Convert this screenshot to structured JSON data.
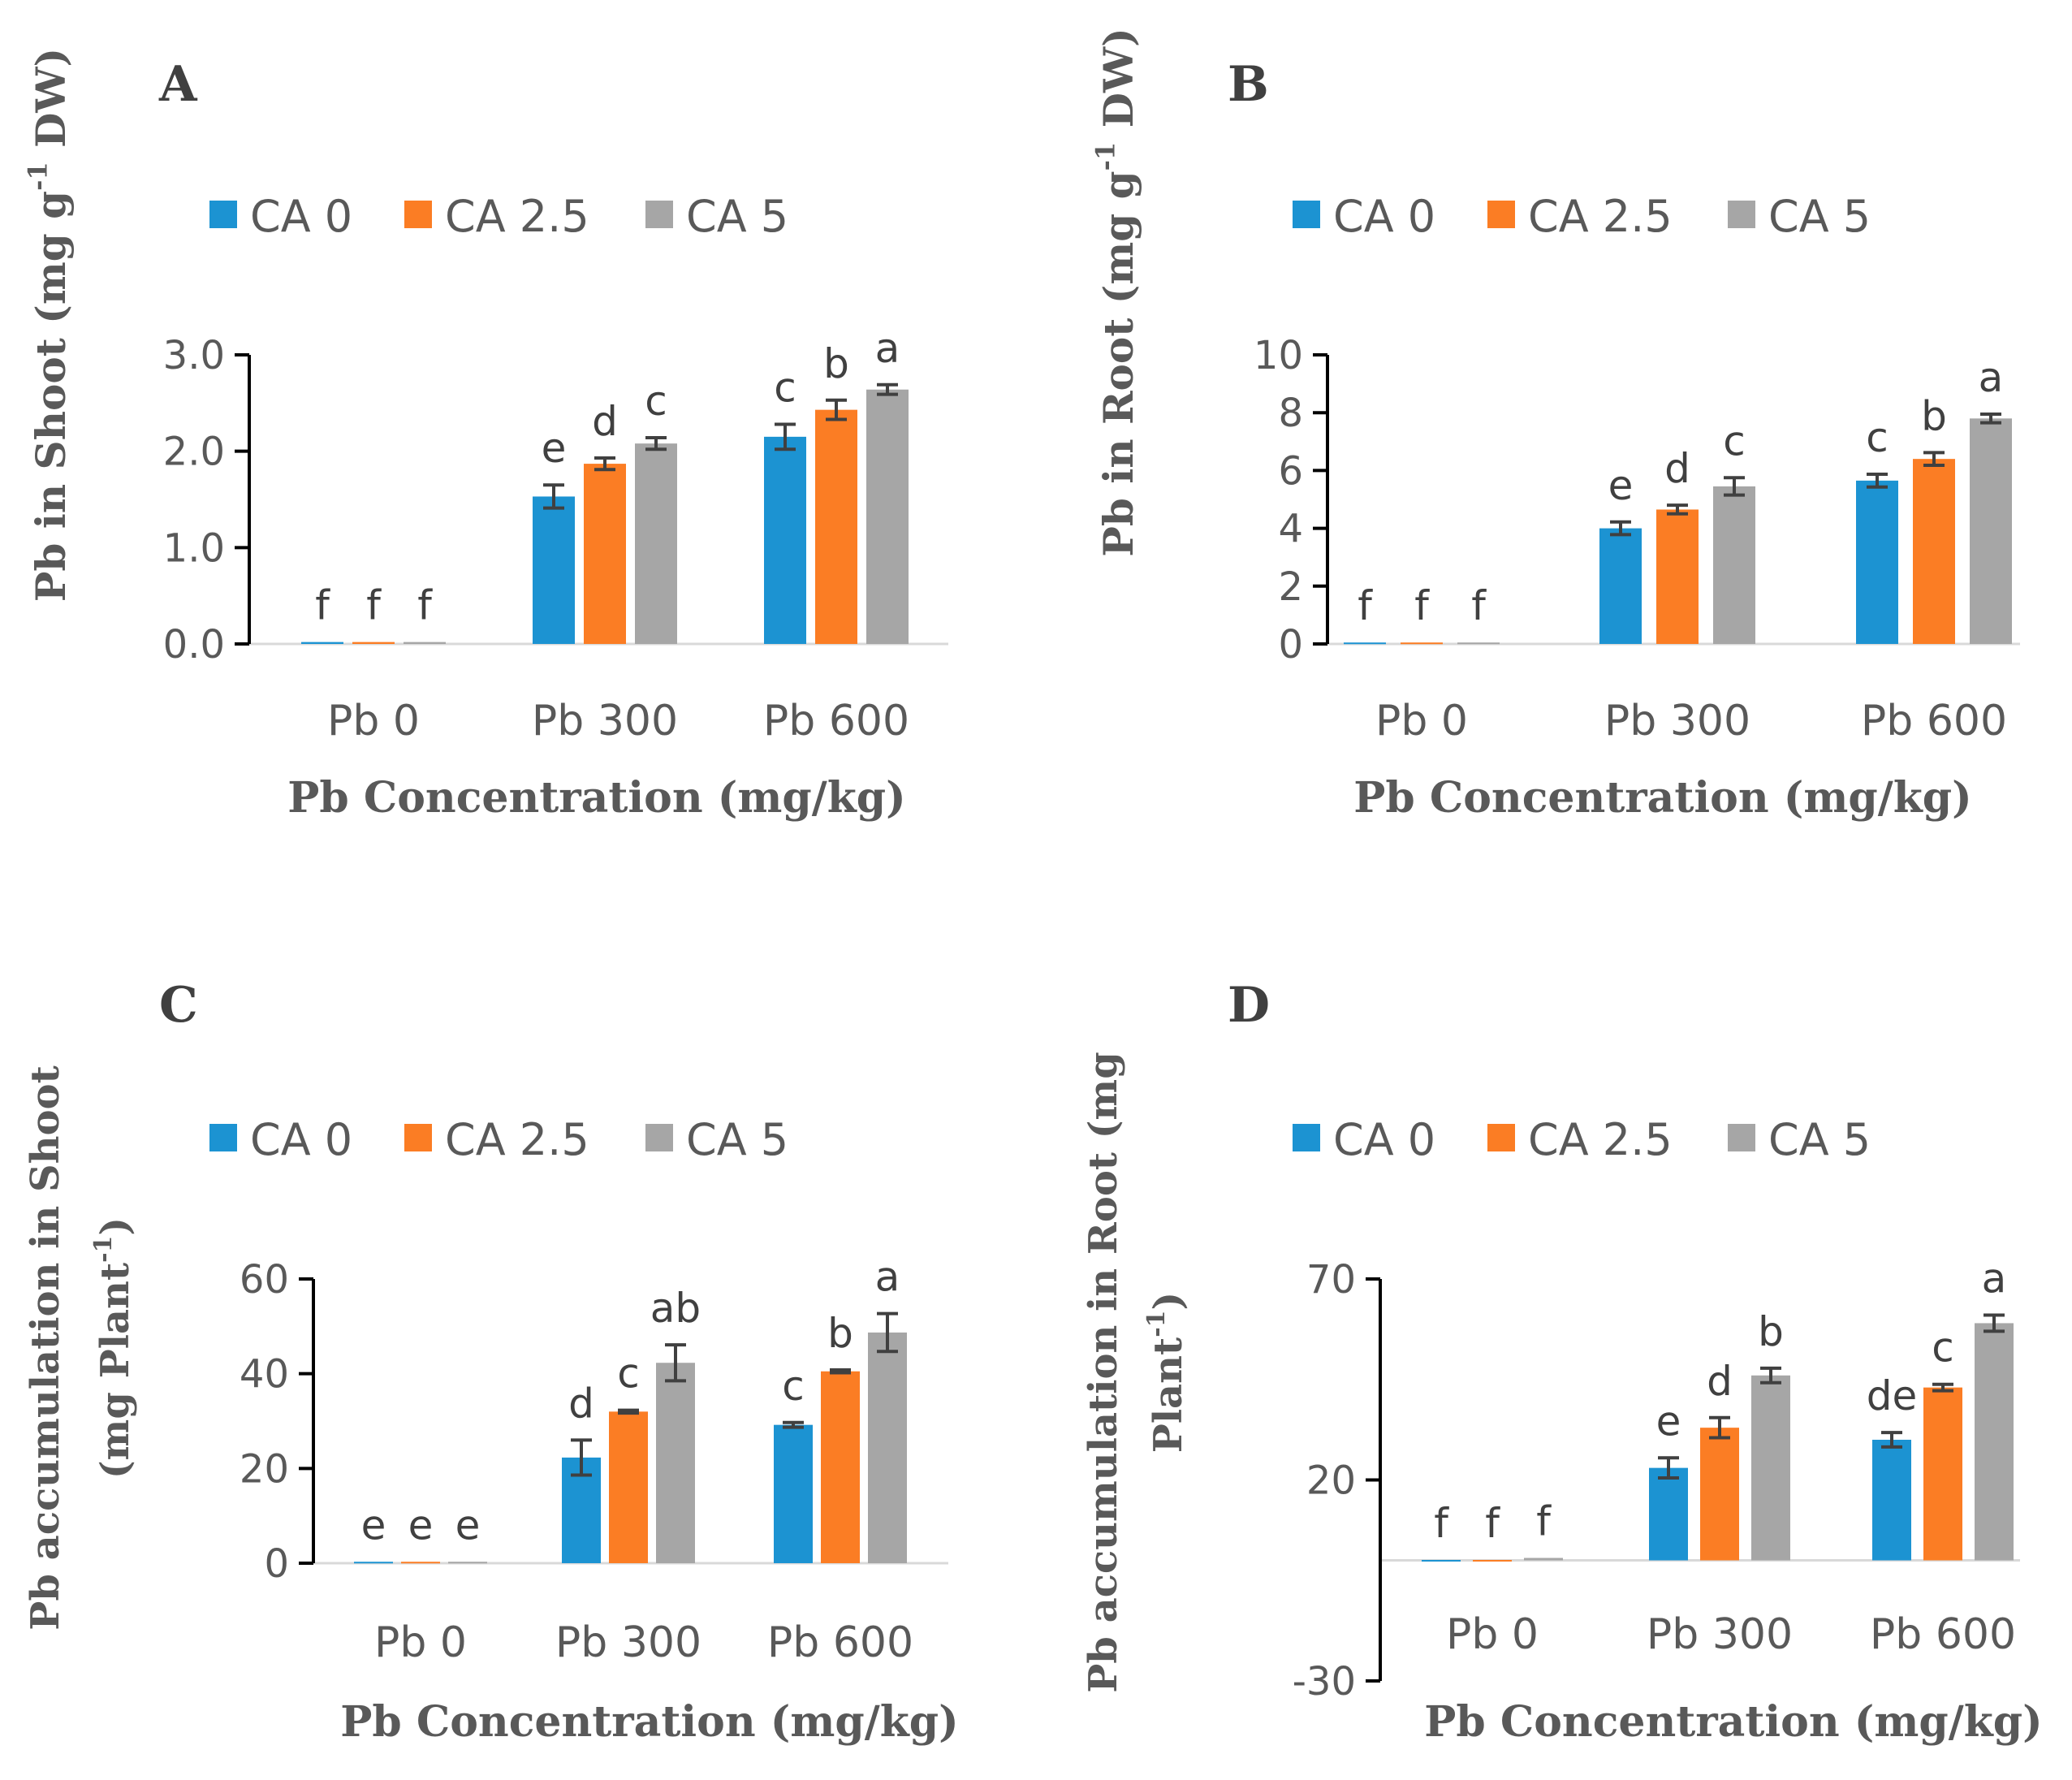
{
  "chart_data": [
    {
      "panel": "A",
      "type": "bar",
      "ylabel": "Pb in Shoot (mg g-1 DW)",
      "xlabel": "Pb Concentration (mg/kg)",
      "categories": [
        "Pb 0",
        "Pb 300",
        "Pb 600"
      ],
      "ylim": [
        0,
        3.0
      ],
      "yticks": [
        0,
        1.0,
        2.0,
        3.0
      ],
      "ytick_labels": [
        "0.0",
        "1.0",
        "2.0",
        "3.0"
      ],
      "series": [
        {
          "name": "CA 0",
          "values": [
            0.02,
            1.53,
            2.15
          ],
          "errors": [
            0,
            0.12,
            0.13
          ],
          "letters": [
            "f",
            "e",
            "c"
          ]
        },
        {
          "name": "CA 2.5",
          "values": [
            0.02,
            1.87,
            2.43
          ],
          "errors": [
            0,
            0.06,
            0.1
          ],
          "letters": [
            "f",
            "d",
            "b"
          ]
        },
        {
          "name": "CA 5",
          "values": [
            0.02,
            2.08,
            2.64
          ],
          "errors": [
            0,
            0.06,
            0.05
          ],
          "letters": [
            "f",
            "c",
            "a"
          ]
        }
      ]
    },
    {
      "panel": "B",
      "type": "bar",
      "ylabel": "Pb in Root (mg g-1 DW)",
      "xlabel": "Pb Concentration (mg/kg)",
      "categories": [
        "Pb 0",
        "Pb 300",
        "Pb 600"
      ],
      "ylim": [
        0,
        10
      ],
      "yticks": [
        0,
        2,
        4,
        6,
        8,
        10
      ],
      "ytick_labels": [
        "0",
        "2",
        "4",
        "6",
        "8",
        "10"
      ],
      "series": [
        {
          "name": "CA 0",
          "values": [
            0.05,
            4.0,
            5.65
          ],
          "errors": [
            0,
            0.22,
            0.22
          ],
          "letters": [
            "f",
            "e",
            "c"
          ]
        },
        {
          "name": "CA 2.5",
          "values": [
            0.05,
            4.65,
            6.4
          ],
          "errors": [
            0,
            0.15,
            0.22
          ],
          "letters": [
            "f",
            "d",
            "b"
          ]
        },
        {
          "name": "CA 5",
          "values": [
            0.05,
            5.45,
            7.8
          ],
          "errors": [
            0,
            0.3,
            0.15
          ],
          "letters": [
            "f",
            "c",
            "a"
          ]
        }
      ]
    },
    {
      "panel": "C",
      "type": "bar",
      "ylabel_lines": [
        "Pb accumulation in Shoot",
        "(mg Plant-1)"
      ],
      "xlabel": "Pb Concentration (mg/kg)",
      "categories": [
        "Pb 0",
        "Pb 300",
        "Pb 600"
      ],
      "ylim": [
        0,
        60
      ],
      "yticks": [
        0,
        20,
        40,
        60
      ],
      "ytick_labels": [
        "0",
        "20",
        "40",
        "60"
      ],
      "series": [
        {
          "name": "CA 0",
          "values": [
            0.3,
            22.3,
            29.2
          ],
          "errors": [
            0,
            3.7,
            0.5
          ],
          "letters": [
            "e",
            "d",
            "c"
          ]
        },
        {
          "name": "CA 2.5",
          "values": [
            0.3,
            32.0,
            40.5
          ],
          "errors": [
            0,
            0.3,
            0.3
          ],
          "letters": [
            "e",
            "c",
            "b"
          ]
        },
        {
          "name": "CA 5",
          "values": [
            0.3,
            42.3,
            48.7
          ],
          "errors": [
            0,
            3.8,
            4.0
          ],
          "letters": [
            "e",
            "ab",
            "a"
          ]
        }
      ]
    },
    {
      "panel": "D",
      "type": "bar",
      "ylabel_lines": [
        "Pb accumulation in Root (mg",
        "Plant-1)"
      ],
      "xlabel": "Pb Concentration (mg/kg)",
      "categories": [
        "Pb 0",
        "Pb 300",
        "Pb 600"
      ],
      "ylim": [
        -30,
        70
      ],
      "yticks": [
        -30,
        20,
        70
      ],
      "ytick_labels": [
        "-30",
        "20",
        "70"
      ],
      "series": [
        {
          "name": "CA 0",
          "values": [
            0.1,
            23.0,
            30.0
          ],
          "errors": [
            0,
            2.5,
            1.8
          ],
          "letters": [
            "f",
            "e",
            "de"
          ]
        },
        {
          "name": "CA 2.5",
          "values": [
            0.1,
            33.0,
            43.0
          ],
          "errors": [
            0,
            2.5,
            0.8
          ],
          "letters": [
            "f",
            "d",
            "c"
          ]
        },
        {
          "name": "CA 5",
          "values": [
            0.6,
            46.0,
            59.0
          ],
          "errors": [
            0,
            1.8,
            2.0
          ],
          "letters": [
            "f",
            "b",
            "a"
          ]
        }
      ]
    }
  ],
  "legend": {
    "items": [
      "CA 0",
      "CA 2.5",
      "CA 5"
    ],
    "colors": [
      "#1c93d2",
      "#fb7d24",
      "#a6a6a6"
    ]
  },
  "colors": {
    "axis": "#000000",
    "baseline": "#d9d9d9",
    "error": "#404040"
  }
}
